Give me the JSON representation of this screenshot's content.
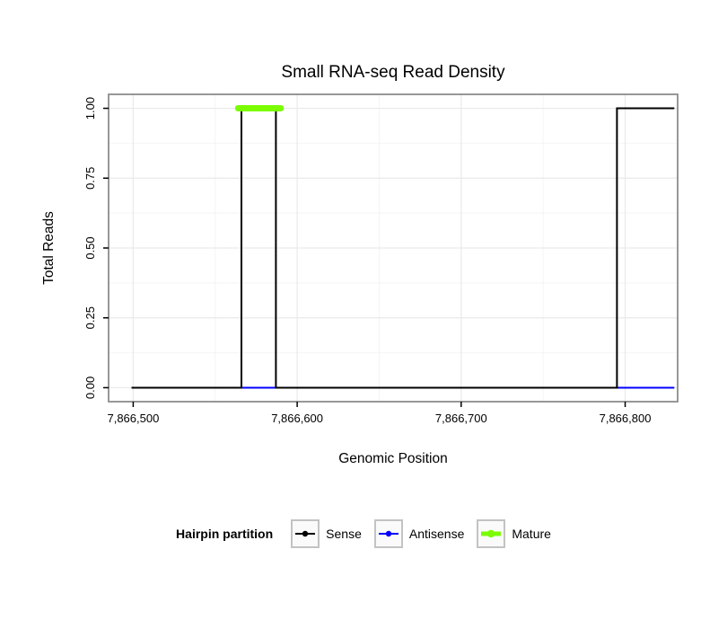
{
  "chart_data": {
    "type": "line",
    "title": "Small RNA-seq Read Density",
    "xlabel": "Genomic Position",
    "ylabel": "Total Reads",
    "xlim": [
      7866485,
      7866832
    ],
    "ylim": [
      -0.05,
      1.05
    ],
    "grid": true,
    "x_ticks": [
      {
        "value": 7866500,
        "label": "7,866,500"
      },
      {
        "value": 7866600,
        "label": "7,866,600"
      },
      {
        "value": 7866700,
        "label": "7,866,700"
      },
      {
        "value": 7866800,
        "label": "7,866,800"
      }
    ],
    "x_minor_ticks": [
      7866550,
      7866650,
      7866750
    ],
    "y_ticks": [
      {
        "value": 0.0,
        "label": "0.00"
      },
      {
        "value": 0.25,
        "label": "0.25"
      },
      {
        "value": 0.5,
        "label": "0.50"
      },
      {
        "value": 0.75,
        "label": "0.75"
      },
      {
        "value": 1.0,
        "label": "1.00"
      }
    ],
    "y_minor_ticks": [
      0.125,
      0.375,
      0.625,
      0.875
    ],
    "series": [
      {
        "name": "Antisense",
        "color": "#0000FF",
        "linewidth": 2,
        "cap": "butt",
        "points": [
          [
            7866499,
            0
          ],
          [
            7866830,
            0
          ]
        ]
      },
      {
        "name": "Sense",
        "color": "#000000",
        "linewidth": 2,
        "cap": "butt",
        "points": [
          [
            7866499,
            0
          ],
          [
            7866566,
            0
          ],
          [
            7866566,
            1
          ],
          [
            7866587,
            1
          ],
          [
            7866587,
            0
          ],
          [
            7866795,
            0
          ],
          [
            7866795,
            1
          ],
          [
            7866830,
            1
          ]
        ]
      },
      {
        "name": "Mature",
        "color": "#7CFC00",
        "linewidth": 7,
        "cap": "round",
        "points": [
          [
            7866564,
            1
          ],
          [
            7866590,
            1
          ]
        ]
      }
    ],
    "legend": {
      "title": "Hairpin partition",
      "position": "bottom",
      "entries": [
        {
          "label": "Sense",
          "color": "#000000",
          "linewidth": 2,
          "dot_radius": 3.2
        },
        {
          "label": "Antisense",
          "color": "#0000FF",
          "linewidth": 2,
          "dot_radius": 3.2
        },
        {
          "label": "Mature",
          "color": "#7CFC00",
          "linewidth": 5,
          "dot_radius": 4.2
        }
      ]
    }
  }
}
